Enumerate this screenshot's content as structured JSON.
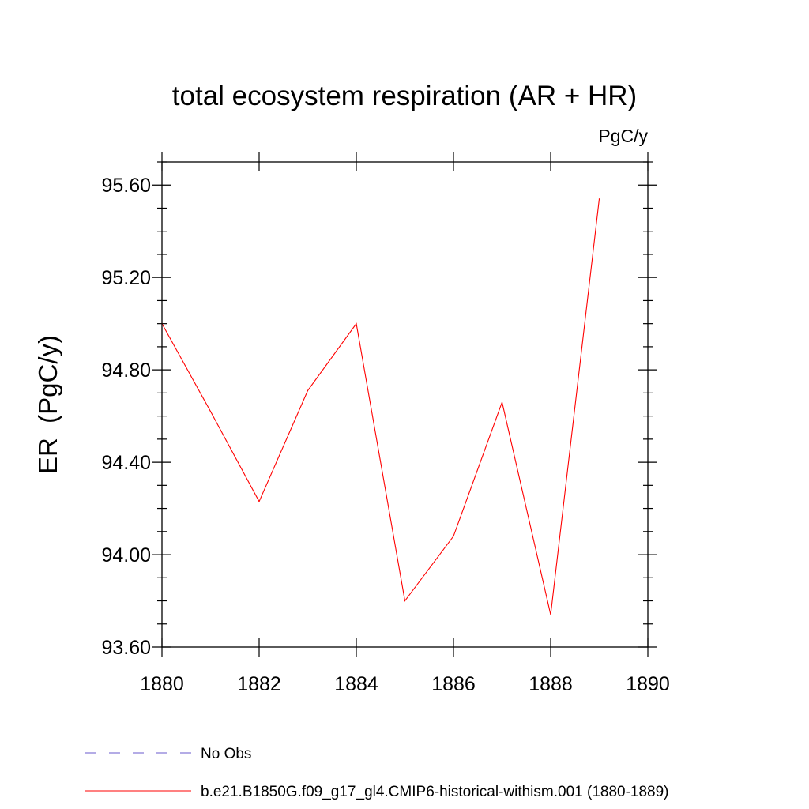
{
  "chart_data": {
    "type": "line",
    "title": "total ecosystem respiration (AR + HR)",
    "units_label": "PgC/y",
    "ylabel": "ER  (PgC/y)",
    "xlabel": "",
    "xlim": [
      1880,
      1890
    ],
    "ylim": [
      93.6,
      95.7
    ],
    "x_ticks": [
      1880,
      1882,
      1884,
      1886,
      1888,
      1890
    ],
    "x_tick_labels": [
      "1880",
      "1882",
      "1884",
      "1886",
      "1888",
      "1890"
    ],
    "y_ticks": [
      93.6,
      94.0,
      94.4,
      94.8,
      95.2,
      95.6
    ],
    "y_tick_labels": [
      "93.60",
      "94.00",
      "94.40",
      "94.80",
      "95.20",
      "95.60"
    ],
    "grid": false,
    "series": [
      {
        "name": "b.e21.B1850G.f09_g17_gl4.CMIP6-historical-withism.001 (1880-1889)",
        "color": "#ff0000",
        "x": [
          1880,
          1881,
          1882,
          1883,
          1884,
          1885,
          1886,
          1887,
          1888,
          1889
        ],
        "y": [
          95.0,
          94.62,
          94.23,
          94.71,
          95.0,
          93.8,
          94.08,
          94.66,
          93.74,
          95.54
        ]
      }
    ],
    "legend": {
      "placement": "bottom",
      "entries": [
        {
          "label": "No Obs",
          "color": "#6a5acd",
          "style": "dashed"
        },
        {
          "label": "b.e21.B1850G.f09_g17_gl4.CMIP6-historical-withism.001 (1880-1889)",
          "color": "#ff0000",
          "style": "solid"
        }
      ]
    }
  }
}
